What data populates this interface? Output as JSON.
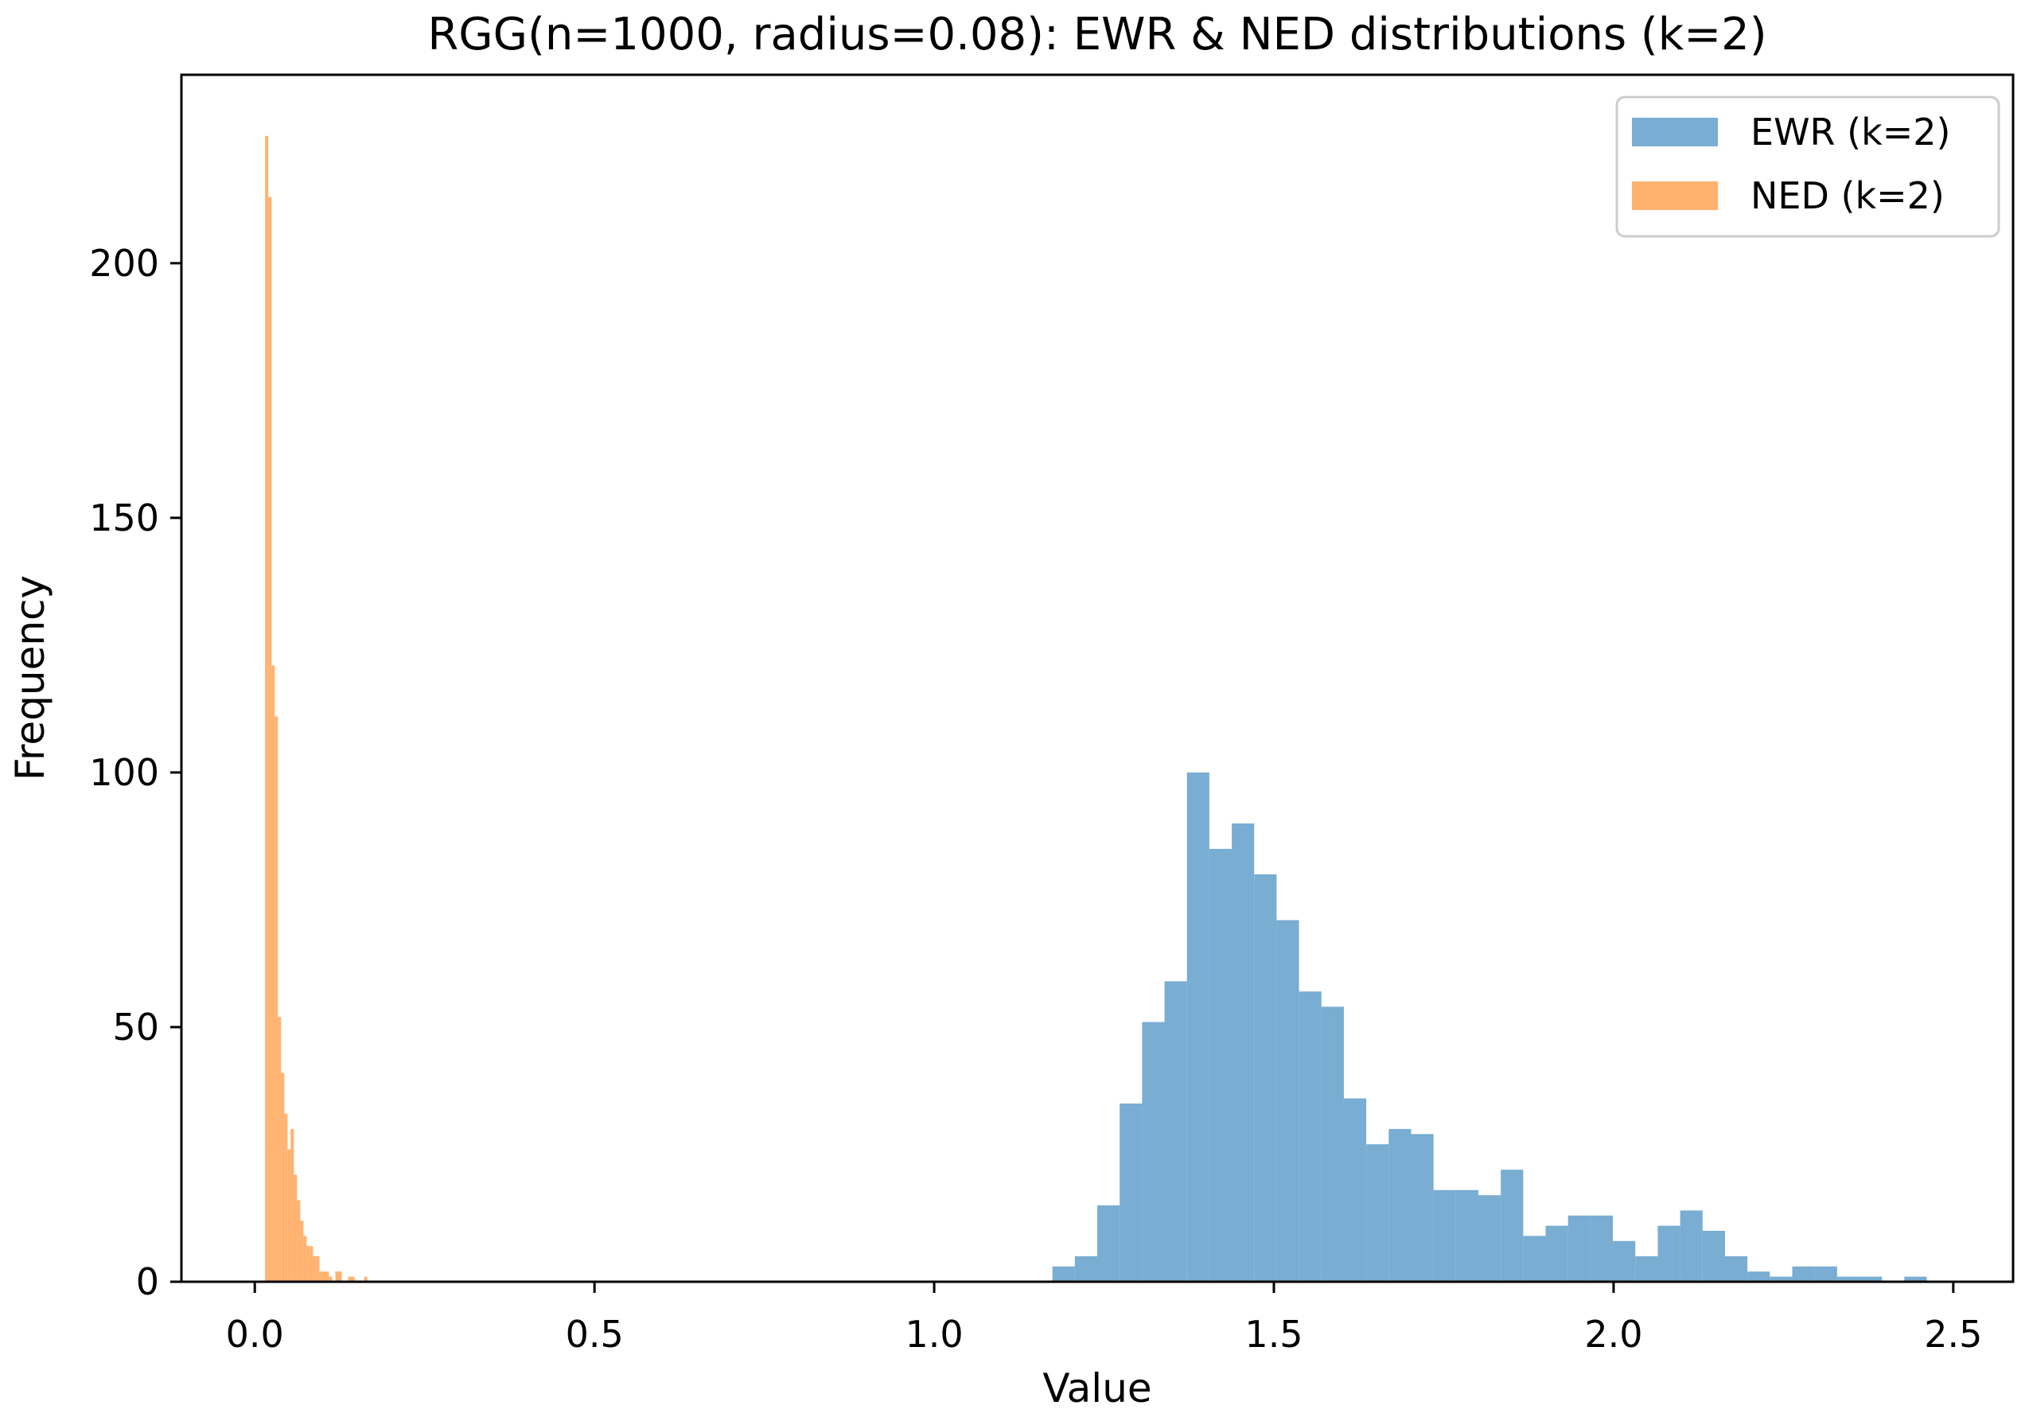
{
  "chart_data": {
    "type": "bar",
    "subtype": "histogram",
    "title": "RGG(n=1000, radius=0.08): EWR & NED distributions (k=2)",
    "xlabel": "Value",
    "ylabel": "Frequency",
    "xlim": [
      -0.108,
      2.588
    ],
    "ylim": [
      0,
      237
    ],
    "xticks": [
      0.0,
      0.5,
      1.0,
      1.5,
      2.0,
      2.5
    ],
    "xtick_labels": [
      "0.0",
      "0.5",
      "1.0",
      "1.5",
      "2.0",
      "2.5"
    ],
    "yticks": [
      0,
      50,
      100,
      150,
      200
    ],
    "ytick_labels": [
      "0",
      "50",
      "100",
      "150",
      "200"
    ],
    "grid": false,
    "legend": {
      "position": "upper right",
      "entries": [
        {
          "label": "EWR (k=2)",
          "color": "#79ADD2"
        },
        {
          "label": "NED (k=2)",
          "color": "#FFB26E"
        }
      ]
    },
    "series": [
      {
        "name": "EWR (k=2)",
        "color": "#79ADD2",
        "bin_start": 1.174,
        "bin_width": 0.033,
        "counts": [
          3,
          5,
          15,
          35,
          51,
          59,
          100,
          85,
          90,
          80,
          71,
          57,
          54,
          36,
          27,
          30,
          29,
          18,
          18,
          17,
          22,
          9,
          11,
          13,
          13,
          8,
          5,
          11,
          14,
          10,
          5,
          2,
          1,
          3,
          3,
          1,
          1,
          0,
          1
        ]
      },
      {
        "name": "NED (k=2)",
        "color": "#FFB26E",
        "bin_start": 0.0152,
        "bin_width": 0.0047,
        "counts": [
          225,
          213,
          121,
          111,
          52,
          41,
          33,
          26,
          30,
          21,
          16,
          12,
          9,
          7,
          7,
          5,
          5,
          2,
          2,
          2,
          1,
          0,
          2,
          2,
          0,
          0,
          1,
          1,
          0,
          0,
          0,
          1
        ]
      }
    ]
  }
}
